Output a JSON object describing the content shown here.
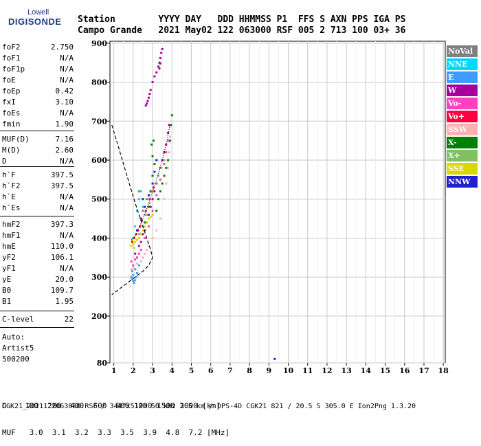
{
  "logo": {
    "top": "Lowell",
    "main": "DIGISONDE"
  },
  "header": {
    "row1": "Station        YYYY DAY   DDD HHMMSS P1  FFS S AXN PPS IGA PS",
    "row2": "Campo Grande   2021 May02 122 063000 RSF 005 2 713 100 03+ 36"
  },
  "params": [
    {
      "name": "foF2",
      "value": "2.750"
    },
    {
      "name": "foF1",
      "value": "N/A"
    },
    {
      "name": "foF1p",
      "value": "N/A"
    },
    {
      "name": "foE",
      "value": "N/A"
    },
    {
      "name": "foEp",
      "value": "0.42"
    },
    {
      "name": "fxI",
      "value": "3.10"
    },
    {
      "name": "foEs",
      "value": "N/A"
    },
    {
      "name": "fmin",
      "value": "1.90"
    },
    {
      "name": "MUF(D)",
      "value": "7.16"
    },
    {
      "name": "M(D)",
      "value": "2.60"
    },
    {
      "name": "D",
      "value": "N/A"
    },
    {
      "name": "h`F",
      "value": "397.5"
    },
    {
      "name": "h`F2",
      "value": "397.5"
    },
    {
      "name": "h`E",
      "value": "N/A"
    },
    {
      "name": "h`Es",
      "value": "N/A"
    },
    {
      "name": "hmF2",
      "value": "397.3"
    },
    {
      "name": "hmF1",
      "value": "N/A"
    },
    {
      "name": "hmE",
      "value": "110.0"
    },
    {
      "name": "yF2",
      "value": "106.1"
    },
    {
      "name": "yF1",
      "value": "N/A"
    },
    {
      "name": "yE",
      "value": "20.0"
    },
    {
      "name": "B0",
      "value": "109.7"
    },
    {
      "name": "B1",
      "value": "1.95"
    },
    {
      "name": "C-level",
      "value": "22"
    }
  ],
  "notes": [
    "Auto:",
    "Artist5",
    "500200"
  ],
  "legend": [
    {
      "label": "NoVal",
      "color": "#808080"
    },
    {
      "label": "NNE",
      "color": "#00d8ff"
    },
    {
      "label": "E",
      "color": "#3c9cff"
    },
    {
      "label": "W",
      "color": "#a8009c"
    },
    {
      "label": "Vo-",
      "color": "#ff40c0"
    },
    {
      "label": "Vo+",
      "color": "#ff0040"
    },
    {
      "label": "SSW",
      "color": "#ffb0b0"
    },
    {
      "label": "X-",
      "color": "#008000"
    },
    {
      "label": "X+",
      "color": "#80c060"
    },
    {
      "label": "SSE",
      "color": "#d8d800"
    },
    {
      "label": "NNW",
      "color": "#2020d0"
    }
  ],
  "freq_table": {
    "row1": "D    100  200  400  600  800 1000 1500 3000 [km]",
    "row2": "MUF   3.0  3.1  3.2  3.3  3.5  3.9  4.8  7.2 [MHz]"
  },
  "footer": "CGK21_2021122063000.RSF / 344fx512h 50 kHz 2.5 km / DPS-4D CGK21 821 / 20.5 S 305.0 E Ion2Png 1.3.20",
  "chart_data": {
    "type": "scatter",
    "title": "",
    "xlabel": "",
    "ylabel": "",
    "xlim": [
      0.8,
      18.1
    ],
    "ylim": [
      80,
      905
    ],
    "x_ticks": [
      1,
      2,
      3,
      4,
      5,
      6,
      7,
      8,
      9,
      10,
      11,
      12,
      13,
      14,
      15,
      16,
      17,
      18
    ],
    "y_ticks": [
      80,
      200,
      300,
      400,
      500,
      600,
      700,
      800,
      900
    ],
    "grid": true,
    "series": [
      {
        "name": "NNE",
        "color": "#00d8ff",
        "points": [
          [
            2.0,
            400
          ],
          [
            2.1,
            430
          ],
          [
            2.2,
            470
          ],
          [
            2.3,
            500
          ],
          [
            2.4,
            520
          ],
          [
            2.5,
            480
          ],
          [
            2.6,
            460
          ],
          [
            2.9,
            520
          ],
          [
            3.0,
            560
          ],
          [
            2.7,
            440
          ]
        ]
      },
      {
        "name": "E",
        "color": "#3c9cff",
        "points": [
          [
            1.9,
            300
          ],
          [
            1.95,
            295
          ],
          [
            2.0,
            290
          ],
          [
            2.05,
            285
          ],
          [
            2.1,
            292
          ],
          [
            2.15,
            300
          ],
          [
            2.2,
            310
          ],
          [
            2.0,
            305
          ],
          [
            2.1,
            320
          ],
          [
            1.95,
            315
          ],
          [
            2.3,
            330
          ]
        ]
      },
      {
        "name": "W",
        "color": "#a8009c",
        "points": [
          [
            2.65,
            740
          ],
          [
            2.7,
            745
          ],
          [
            2.75,
            752
          ],
          [
            2.8,
            760
          ],
          [
            2.85,
            770
          ],
          [
            2.9,
            780
          ],
          [
            3.0,
            800
          ],
          [
            3.1,
            815
          ],
          [
            3.2,
            825
          ],
          [
            3.3,
            840
          ],
          [
            3.35,
            850
          ],
          [
            3.4,
            862
          ],
          [
            3.45,
            875
          ],
          [
            3.5,
            885
          ],
          [
            3.35,
            835
          ],
          [
            3.4,
            848
          ],
          [
            2.1,
            360
          ],
          [
            2.3,
            380
          ],
          [
            2.5,
            410
          ],
          [
            2.7,
            440
          ],
          [
            2.9,
            480
          ],
          [
            3.1,
            520
          ],
          [
            3.3,
            560
          ],
          [
            3.5,
            600
          ],
          [
            3.7,
            640
          ],
          [
            3.8,
            670
          ],
          [
            3.85,
            690
          ],
          [
            2.2,
            350
          ],
          [
            2.4,
            390
          ],
          [
            2.6,
            420
          ],
          [
            2.8,
            460
          ],
          [
            3.0,
            500
          ],
          [
            3.2,
            540
          ],
          [
            3.4,
            580
          ],
          [
            3.6,
            620
          ]
        ]
      },
      {
        "name": "Vo-",
        "color": "#ff40c0",
        "points": [
          [
            2.0,
            330
          ],
          [
            2.2,
            350
          ],
          [
            2.4,
            370
          ],
          [
            2.6,
            400
          ],
          [
            2.8,
            430
          ],
          [
            3.0,
            470
          ],
          [
            3.2,
            510
          ],
          [
            3.4,
            550
          ],
          [
            3.6,
            590
          ],
          [
            3.7,
            620
          ],
          [
            3.8,
            650
          ],
          [
            1.9,
            340
          ],
          [
            2.1,
            345
          ],
          [
            2.3,
            360
          ]
        ]
      },
      {
        "name": "Vo+",
        "color": "#ff0040",
        "points": [
          [
            1.95,
            390
          ],
          [
            2.05,
            400
          ],
          [
            2.25,
            420
          ],
          [
            2.45,
            445
          ],
          [
            2.65,
            470
          ],
          [
            2.85,
            500
          ],
          [
            3.05,
            530
          ],
          [
            2.15,
            410
          ],
          [
            2.35,
            430
          ]
        ]
      },
      {
        "name": "SSW",
        "color": "#ffb0b0",
        "points": [
          [
            1.9,
            320
          ],
          [
            2.0,
            325
          ],
          [
            2.2,
            335
          ],
          [
            2.4,
            340
          ],
          [
            2.6,
            360
          ],
          [
            2.8,
            380
          ],
          [
            3.0,
            400
          ],
          [
            3.2,
            420
          ],
          [
            3.4,
            450
          ],
          [
            3.6,
            500
          ],
          [
            3.7,
            540
          ],
          [
            3.8,
            580
          ],
          [
            3.85,
            620
          ],
          [
            3.9,
            660
          ],
          [
            3.95,
            690
          ],
          [
            2.5,
            350
          ],
          [
            2.7,
            370
          ]
        ]
      },
      {
        "name": "X-",
        "color": "#008000",
        "points": [
          [
            2.8,
            480
          ],
          [
            2.9,
            520
          ],
          [
            3.0,
            560
          ],
          [
            3.1,
            590
          ],
          [
            3.0,
            610
          ],
          [
            2.95,
            640
          ],
          [
            3.05,
            650
          ],
          [
            3.2,
            470
          ],
          [
            3.3,
            500
          ],
          [
            3.4,
            520
          ],
          [
            3.5,
            540
          ],
          [
            3.6,
            560
          ],
          [
            3.7,
            580
          ],
          [
            3.8,
            600
          ],
          [
            3.9,
            650
          ],
          [
            3.95,
            690
          ],
          [
            4.0,
            715
          ],
          [
            2.6,
            440
          ]
        ]
      },
      {
        "name": "X+",
        "color": "#80c060",
        "points": [
          [
            2.7,
            460
          ],
          [
            2.85,
            490
          ],
          [
            3.0,
            520
          ],
          [
            3.15,
            540
          ],
          [
            3.3,
            560
          ],
          [
            3.45,
            580
          ],
          [
            3.6,
            600
          ],
          [
            2.5,
            430
          ],
          [
            2.3,
            410
          ]
        ]
      },
      {
        "name": "SSE",
        "color": "#d8d800",
        "points": [
          [
            1.9,
            380
          ],
          [
            2.0,
            385
          ],
          [
            2.1,
            390
          ],
          [
            2.2,
            395
          ],
          [
            2.3,
            400
          ],
          [
            2.4,
            410
          ],
          [
            2.5,
            420
          ],
          [
            2.6,
            430
          ],
          [
            2.7,
            440
          ],
          [
            2.8,
            450
          ],
          [
            2.9,
            455
          ],
          [
            3.0,
            460
          ],
          [
            1.95,
            395
          ],
          [
            2.05,
            375
          ]
        ]
      },
      {
        "name": "NNW",
        "color": "#2020d0",
        "points": [
          [
            2.2,
            420
          ],
          [
            2.4,
            450
          ],
          [
            2.6,
            480
          ],
          [
            2.8,
            510
          ],
          [
            3.0,
            540
          ],
          [
            3.1,
            570
          ],
          [
            3.2,
            600
          ],
          [
            2.5,
            500
          ],
          [
            9.3,
            90
          ]
        ]
      },
      {
        "name": "NoVal",
        "color": "#808080",
        "points": [
          [
            2.3,
            520
          ],
          [
            2.5,
            470
          ],
          [
            2.7,
            500
          ]
        ]
      }
    ],
    "profile_curve": [
      [
        0.9,
        690
      ],
      [
        1.2,
        640
      ],
      [
        1.5,
        590
      ],
      [
        1.8,
        540
      ],
      [
        2.1,
        490
      ],
      [
        2.4,
        445
      ],
      [
        2.7,
        400
      ],
      [
        2.9,
        370
      ],
      [
        3.0,
        350
      ],
      [
        2.8,
        330
      ],
      [
        2.5,
        315
      ],
      [
        2.1,
        300
      ],
      [
        1.7,
        285
      ],
      [
        1.3,
        270
      ],
      [
        0.9,
        255
      ]
    ],
    "trace_curve": [
      [
        1.9,
        395
      ],
      [
        2.1,
        405
      ],
      [
        2.3,
        425
      ],
      [
        2.5,
        450
      ],
      [
        2.7,
        475
      ],
      [
        2.9,
        505
      ],
      [
        3.1,
        535
      ],
      [
        3.3,
        565
      ],
      [
        3.5,
        600
      ],
      [
        3.7,
        640
      ],
      [
        3.9,
        690
      ]
    ]
  }
}
